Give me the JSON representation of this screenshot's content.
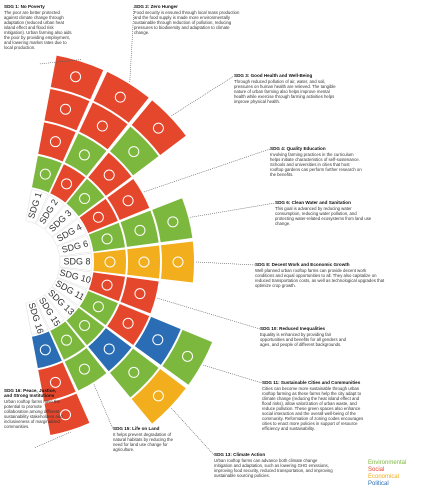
{
  "legend": [
    {
      "label": "Environmental",
      "color": "#7cb83e"
    },
    {
      "label": "Social",
      "color": "#e5472d"
    },
    {
      "label": "Economical",
      "color": "#f2ae1c"
    },
    {
      "label": "Political",
      "color": "#2a6db5"
    }
  ],
  "sdgs": [
    {
      "label": "SDG 1",
      "title": "SDG 1: No Poverty",
      "text": "The poor are better protected against climate change through adaptation (reduced urban heat island effect and flood risk mitigation). Urban farming also aids the poor by providing employment, and lowering market rates due to local production.",
      "cells": [
        "#7cb83e",
        "#e5472d",
        "#e5472d",
        "#e5472d"
      ]
    },
    {
      "label": "SDG 2",
      "title": "SDG 2: Zero Hunger",
      "text": "Food security is ensured through local mass production and the food supply is made more environmentally sustainable through reduction of pollution, reducing pressures to biodiversity and adaptation to climate change.",
      "cells": [
        "#e5472d",
        "#7cb83e",
        "#e5472d",
        "#e5472d"
      ]
    },
    {
      "label": "SDG 3",
      "title": "SDG 3: Good Health and Well-Being",
      "text": "Through reduced pollution of air, water, and soil, pressures on human health are relieved. The tangible nature of urban farming also helps improve mental health while exercise through farming activities helps improve physical health.",
      "cells": [
        "#7cb83e",
        "#e5472d",
        "#7cb83e",
        "#e5472d"
      ]
    },
    {
      "label": "SDG 4",
      "title": "SDG 4: Quality Education",
      "text": "Involving farming practices in the curriculum helps initiate characteristics of self-sustenance. Schools and universities in cities that host rooftop gardens can perform further research on the benefits.",
      "cells": [
        "#e5472d",
        "#e5472d"
      ]
    },
    {
      "label": "SDG 6",
      "title": "SDG 6: Clean Water and Sanitation",
      "text": "This goal is advanced by reducing water consumption, reducing water pollution, and protecting water-related ecosystems from land use change.",
      "cells": [
        "#7cb83e",
        "#7cb83e",
        "#7cb83e"
      ]
    },
    {
      "label": "SDG 8",
      "title": "SDG 8: Decent Work and Economic Growth",
      "text": "Well planned urban rooftop farms can provide decent work conditions and equal opportunities to all. They also capitalize on reduced transportation costs, as well as technological upgrades that optimize crop growth.",
      "cells": [
        "#f2ae1c",
        "#f2ae1c",
        "#f2ae1c"
      ]
    },
    {
      "label": "SDG 10",
      "title": "SDG 10: Reduced Inequalities",
      "text": "Equality is enhanced by providing fair opportunities and benefits for all genders and ages, and people of different backgrounds.",
      "cells": [
        "#e5472d",
        "#e5472d"
      ]
    },
    {
      "label": "SDG 11",
      "title": "SDG 11: Sustainable Cities and Communities",
      "text": "Cities can become more sustainable through urban rooftop farming as these farms help the city adapt to climate change (reducing the heat island effect and flood risks), allow valorization of urban waste, and reduce pollution. These green spaces also enhance social interaction and the overall well-being of the community. Reformation of zoning codes encourages cities to enact more policies in support of resource efficiency and sustainability.",
      "cells": [
        "#7cb83e",
        "#e5472d",
        "#2a6db5",
        "#7cb83e"
      ]
    },
    {
      "label": "SDG 13",
      "title": "SDG 13: Climate Action",
      "text": "Urban rooftop farms can advance both climate change mitigation and adaptation, such as lowering GHG emissions, improving food security, reduced transportation, and improving sustainable sourcing policies.",
      "cells": [
        "#7cb83e",
        "#2a6db5",
        "#7cb83e",
        "#f2ae1c"
      ]
    },
    {
      "label": "SDG 15",
      "title": "SDG 15: Life on Land",
      "text": "It helps prevent degradation of natural habitats by reducing the need for land use change for agriculture.",
      "cells": [
        "#7cb83e",
        "#7cb83e"
      ]
    },
    {
      "label": "SDG 16",
      "title": "SDG 16: Peace, Justice, and Strong Institutions",
      "text": "Urban rooftop farms have the potential to promote collaboration among different sustainability stakeholders and inclusiveness of marginalized communities.",
      "cells": [
        "#2a6db5",
        "#e5472d",
        "#e5472d"
      ]
    }
  ]
}
